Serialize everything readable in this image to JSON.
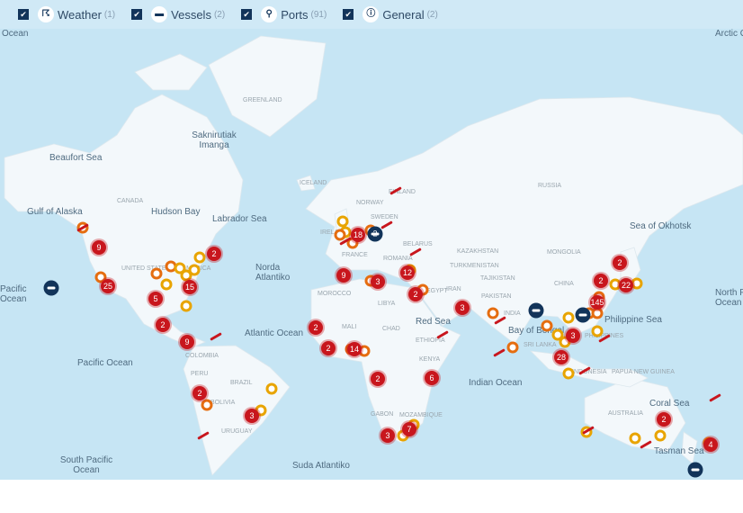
{
  "filters": [
    {
      "label": "Weather",
      "count": "(1)",
      "icon": "weather-storm-icon",
      "checked": true
    },
    {
      "label": "Vessels",
      "count": "(2)",
      "icon": "vessel-icon",
      "checked": true
    },
    {
      "label": "Ports",
      "count": "(91)",
      "icon": "port-pin-icon",
      "checked": true
    },
    {
      "label": "General",
      "count": "(2)",
      "icon": "info-alert-icon",
      "checked": true
    }
  ],
  "colors": {
    "ocean": "#c6e5f4",
    "land": "#f3f8fb",
    "cluster": "#c8161d",
    "port": "#e8a400",
    "port_alt": "#e56d10",
    "vessel": "#12345a"
  },
  "labels": [
    "Ocean",
    "Arctic O",
    "GREENLAND",
    "Saknirutiak Imanga",
    "Beaufort Sea",
    "Gulf of Alaska",
    "CANADA",
    "Hudson Bay",
    "Labrador Sea",
    "ICELAND",
    "NORWAY",
    "FINLAND",
    "SWEDEN",
    "RUSSIA",
    "Sea of Okhotsk",
    "IRELAND",
    "BELARUS",
    "FRANCE",
    "ROMANIA",
    "KAZAKHSTAN",
    "MONGOLIA",
    "UNITED STATES OF AMERICA",
    "Norda Atlantiko",
    "TURKMENISTAN",
    "TAJIKISTAN",
    "Pacific Ocean",
    "North P Ocean",
    "MOROCCO",
    "LIBYA",
    "EGYPT",
    "IRAN",
    "PAKISTAN",
    "INDIA",
    "CHINA",
    "Philippine Sea",
    "Red Sea",
    "Bay of Bengal",
    "SRI LANKA",
    "PHILIPPINES",
    "MALI",
    "CHAD",
    "ETHIOPIA",
    "KENYA",
    "Atlantic Ocean",
    "COLOMBIA",
    "PERU",
    "BRAZIL",
    "BOLIVIA",
    "URUGUAY",
    "GABON",
    "MOZAMBIQUE",
    "Indian Ocean",
    "INDONESIA",
    "PAPUA NEW GUINEA",
    "AUSTRALIA",
    "Coral Sea",
    "Tasman Sea",
    "Pacific Ocean",
    "South Pacific Ocean",
    "Suda Atlantiko"
  ],
  "clusters": [
    "9",
    "25",
    "5",
    "15",
    "2",
    "2",
    "9",
    "2",
    "3",
    "9",
    "18",
    "3",
    "12",
    "2",
    "3",
    "2",
    "2",
    "14",
    "2",
    "6",
    "3",
    "7",
    "2",
    "22",
    "145",
    "3",
    "28",
    "2",
    "4",
    "2"
  ],
  "vessel_clusters": [
    "",
    "",
    "2",
    "",
    ""
  ]
}
